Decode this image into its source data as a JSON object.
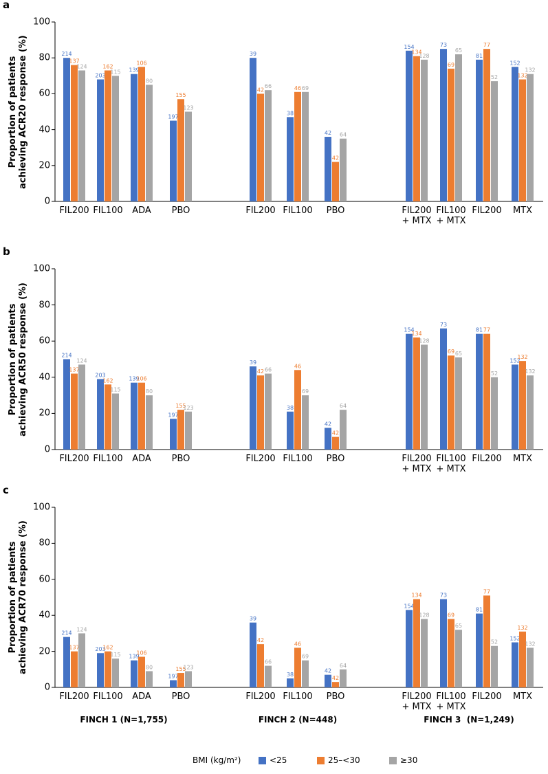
{
  "chart_data": [
    {
      "type": "bar",
      "panel": "a",
      "ylabel": "Proportion of patients\nachieving ACR20 response (%)",
      "categories": [
        "FIL200",
        "FIL100",
        "ADA",
        "PBO",
        "FIL200",
        "FIL100",
        "PBO",
        "FIL200\n+ MTX",
        "FIL100\n+ MTX",
        "FIL200",
        "MTX"
      ],
      "ylim": [
        0,
        100
      ],
      "yticks": [
        0,
        20,
        40,
        60,
        80,
        100
      ],
      "grid": false,
      "series": [
        {
          "name": "<25",
          "color": "#4472c4",
          "values": [
            80,
            68,
            71,
            45,
            80,
            47,
            36,
            84,
            85,
            79,
            75
          ],
          "n": [
            214,
            203,
            139,
            197,
            39,
            38,
            42,
            154,
            73,
            81,
            152
          ]
        },
        {
          "name": "25–<30",
          "color": "#ed7d31",
          "values": [
            76,
            73,
            75,
            57,
            60,
            61,
            22,
            81,
            74,
            85,
            68
          ],
          "n": [
            137,
            162,
            106,
            155,
            42,
            46,
            42,
            134,
            69,
            77,
            132
          ]
        },
        {
          "name": "≥30",
          "color": "#a5a5a5",
          "values": [
            73,
            70,
            65,
            50,
            62,
            61,
            35,
            79,
            82,
            67,
            71
          ],
          "n": [
            124,
            115,
            80,
            123,
            66,
            69,
            64,
            128,
            65,
            52,
            132
          ]
        }
      ]
    },
    {
      "type": "bar",
      "panel": "b",
      "ylabel": "Proportion of patients\nachieving ACR50 response (%)",
      "categories": [
        "FIL200",
        "FIL100",
        "ADA",
        "PBO",
        "FIL200",
        "FIL100",
        "PBO",
        "FIL200\n+ MTX",
        "FIL100\n+ MTX",
        "FIL200",
        "MTX"
      ],
      "ylim": [
        0,
        100
      ],
      "yticks": [
        0,
        20,
        40,
        60,
        80,
        100
      ],
      "grid": false,
      "series": [
        {
          "name": "<25",
          "color": "#4472c4",
          "values": [
            50,
            39,
            37,
            17,
            46,
            21,
            12,
            64,
            67,
            64,
            47
          ],
          "n": [
            214,
            203,
            139,
            197,
            39,
            38,
            42,
            154,
            73,
            81,
            152
          ]
        },
        {
          "name": "25–<30",
          "color": "#ed7d31",
          "values": [
            42,
            36,
            37,
            22,
            41,
            44,
            7,
            62,
            52,
            64,
            49
          ],
          "n": [
            137,
            162,
            106,
            155,
            42,
            46,
            42,
            134,
            69,
            77,
            132
          ]
        },
        {
          "name": "≥30",
          "color": "#a5a5a5",
          "values": [
            47,
            31,
            30,
            21,
            42,
            30,
            22,
            58,
            51,
            40,
            41
          ],
          "n": [
            124,
            115,
            80,
            123,
            66,
            69,
            64,
            128,
            65,
            52,
            132
          ]
        }
      ]
    },
    {
      "type": "bar",
      "panel": "c",
      "ylabel": "Proportion of patients\nachieving ACR70 response (%)",
      "categories": [
        "FIL200",
        "FIL100",
        "ADA",
        "PBO",
        "FIL200",
        "FIL100",
        "PBO",
        "FIL200\n+ MTX",
        "FIL100\n+ MTX",
        "FIL200",
        "MTX"
      ],
      "ylim": [
        0,
        100
      ],
      "yticks": [
        0,
        20,
        40,
        60,
        80,
        100
      ],
      "grid": false,
      "series": [
        {
          "name": "<25",
          "color": "#4472c4",
          "values": [
            28,
            19,
            15,
            4,
            36,
            5,
            7,
            43,
            49,
            41,
            25
          ],
          "n": [
            214,
            203,
            139,
            197,
            39,
            38,
            42,
            154,
            73,
            81,
            152
          ]
        },
        {
          "name": "25–<30",
          "color": "#ed7d31",
          "values": [
            20,
            20,
            17,
            8,
            24,
            22,
            3,
            49,
            38,
            51,
            31
          ],
          "n": [
            137,
            162,
            106,
            155,
            42,
            46,
            42,
            134,
            69,
            77,
            132
          ]
        },
        {
          "name": "≥30",
          "color": "#a5a5a5",
          "values": [
            30,
            16,
            9,
            9,
            12,
            15,
            10,
            38,
            32,
            23,
            22
          ],
          "n": [
            124,
            115,
            80,
            123,
            66,
            69,
            64,
            128,
            65,
            52,
            132
          ]
        }
      ]
    }
  ],
  "trials": [
    "FINCH 1 (N=1,755)",
    "FINCH 2 (N=448)",
    "FINCH 3  (N=1,249)"
  ],
  "legend_title": "BMI (kg/m²)"
}
